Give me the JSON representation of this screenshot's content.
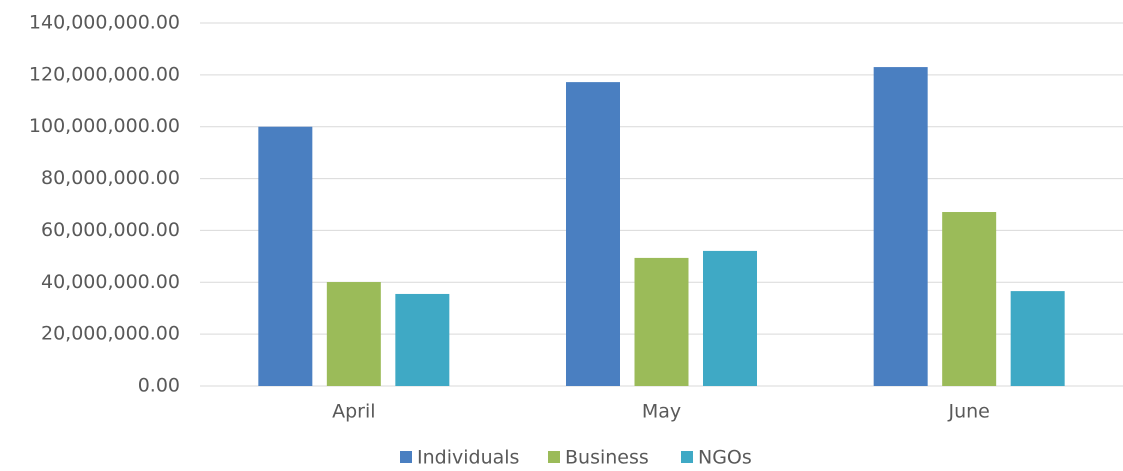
{
  "chart_data": {
    "type": "bar",
    "categories": [
      "April",
      "May",
      "June"
    ],
    "series": [
      {
        "name": "Individuals",
        "color": "#4a7fc1",
        "values": [
          100000000,
          117200000,
          123000000
        ]
      },
      {
        "name": "Business",
        "color": "#9bbb59",
        "values": [
          40100000,
          49400000,
          67100000
        ]
      },
      {
        "name": "NGOs",
        "color": "#3fa9c5",
        "values": [
          35500000,
          52100000,
          36600000
        ]
      }
    ],
    "ylim": [
      0,
      140000000
    ],
    "yticks": [
      {
        "value": 0,
        "label": "0.00"
      },
      {
        "value": 20000000,
        "label": "20,000,000.00"
      },
      {
        "value": 40000000,
        "label": "40,000,000.00"
      },
      {
        "value": 60000000,
        "label": "60,000,000.00"
      },
      {
        "value": 80000000,
        "label": "80,000,000.00"
      },
      {
        "value": 100000000,
        "label": "100,000,000.00"
      },
      {
        "value": 120000000,
        "label": "120,000,000.00"
      },
      {
        "value": 140000000,
        "label": "140,000,000.00"
      }
    ],
    "grid": true,
    "legend": "bottom"
  }
}
